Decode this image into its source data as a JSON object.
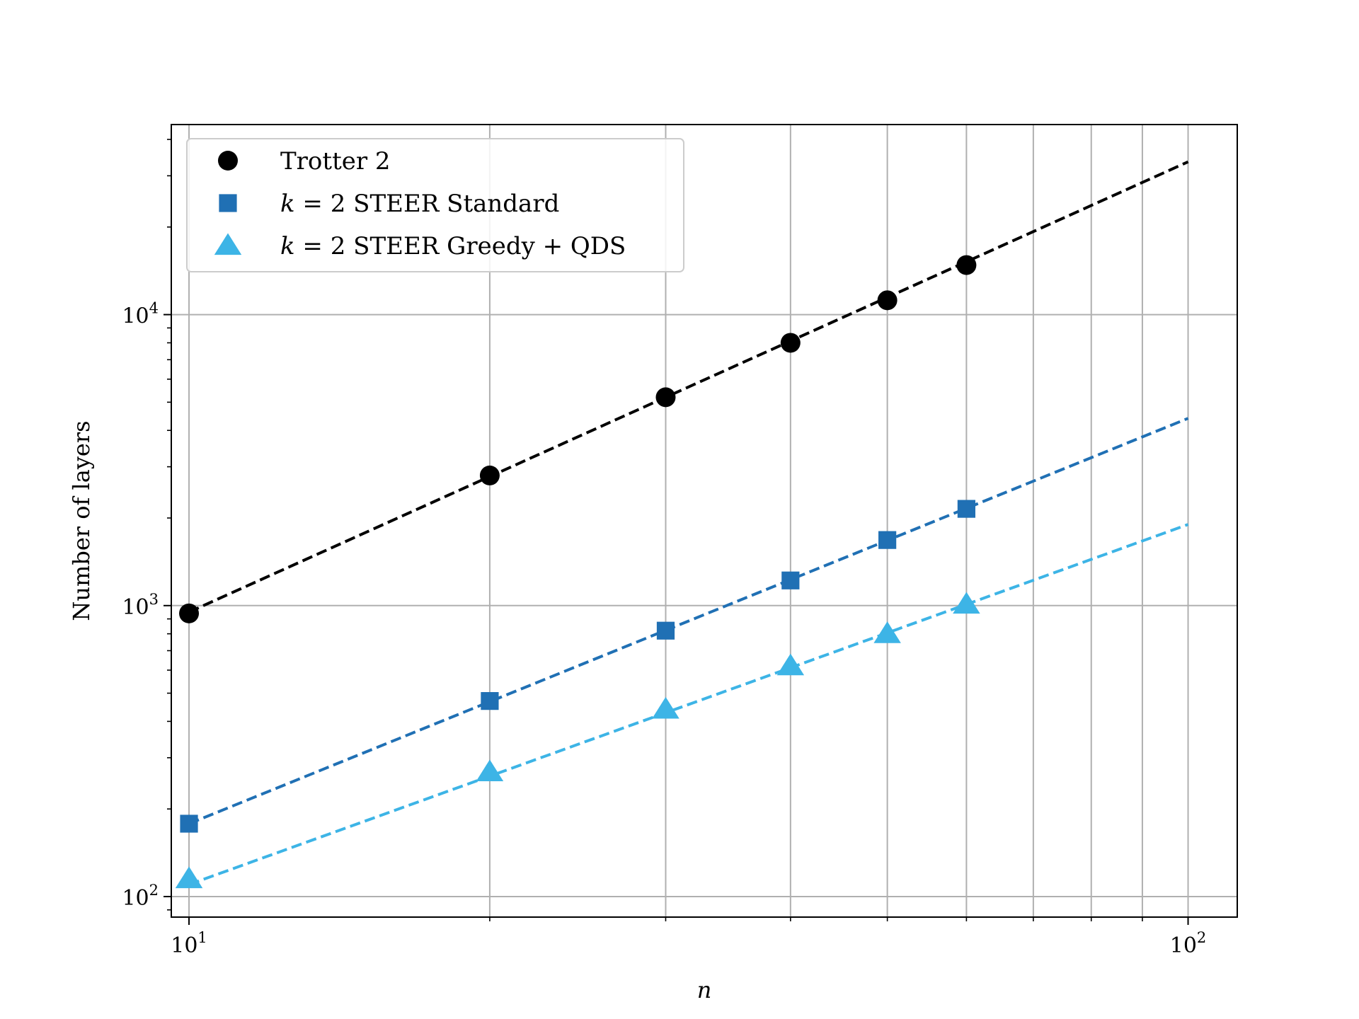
{
  "chart_data": {
    "type": "line",
    "xscale": "log",
    "yscale": "log",
    "xlim": [
      9.6,
      112
    ],
    "ylim": [
      85,
      45000
    ],
    "xlabel": "n",
    "ylabel": "Number of layers",
    "grid": "on",
    "legend_position": "top-left",
    "x_ticks": [
      {
        "value": 10,
        "base": "10",
        "exp": "1"
      },
      {
        "value": 100,
        "base": "10",
        "exp": "2"
      }
    ],
    "y_ticks": [
      {
        "value": 100,
        "base": "10",
        "exp": "2"
      },
      {
        "value": 1000,
        "base": "10",
        "exp": "3"
      },
      {
        "value": 10000,
        "base": "10",
        "exp": "4"
      }
    ],
    "x": [
      10,
      20,
      30,
      40,
      50,
      60
    ],
    "series": [
      {
        "name": "Trotter 2",
        "color": "#000000",
        "marker": "circle",
        "values": [
          940,
          2800,
          5200,
          8000,
          11200,
          14800
        ],
        "fit": {
          "x": [
            10,
            100
          ],
          "y": [
            950,
            33500
          ]
        }
      },
      {
        "name": "k = 2 STEER Standard",
        "name_italic": "k",
        "name_rest": " = 2 STEER Standard",
        "color": "#2070b4",
        "marker": "square",
        "values": [
          178,
          470,
          820,
          1220,
          1680,
          2150
        ],
        "fit": {
          "x": [
            10,
            100
          ],
          "y": [
            178,
            4400
          ]
        }
      },
      {
        "name": "k = 2 STEER Greedy + QDS",
        "name_italic": "k",
        "name_rest": " = 2 STEER Greedy + QDS",
        "color": "#3db4e6",
        "marker": "triangle",
        "values": [
          115,
          268,
          440,
          620,
          800,
          1010
        ],
        "fit": {
          "x": [
            10,
            100
          ],
          "y": [
            110,
            1900
          ]
        }
      }
    ]
  }
}
